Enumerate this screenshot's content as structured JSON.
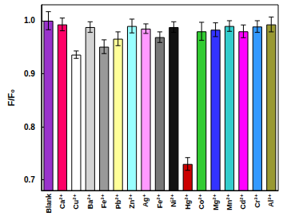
{
  "chart_data": {
    "type": "bar",
    "y_label": "F/F₀",
    "categories": [
      "Blank",
      "Ca²⁺",
      "Cu²⁺",
      "Ba²⁺",
      "Fe³⁺",
      "Pb²⁺",
      "Zn²⁺",
      "Ag⁺",
      "Fe²⁺",
      "Ni²⁺",
      "Hg²⁺",
      "Co²⁺",
      "Mg²⁺",
      "Mn²⁺",
      "Cd²⁺",
      "Cr³⁺",
      "Al³⁺"
    ],
    "values": [
      1.0,
      0.993,
      0.936,
      0.988,
      0.951,
      0.966,
      0.99,
      0.985,
      0.969,
      0.988,
      0.73,
      0.98,
      0.983,
      0.99,
      0.98,
      0.989,
      0.993
    ],
    "errors": [
      0.017,
      0.012,
      0.007,
      0.01,
      0.013,
      0.013,
      0.013,
      0.009,
      0.01,
      0.01,
      0.012,
      0.017,
      0.013,
      0.01,
      0.012,
      0.011,
      0.014
    ],
    "colors": [
      "#9933cc",
      "#ff0066",
      "#ffffff",
      "#d3d3d3",
      "#999999",
      "#ffff99",
      "#99ffff",
      "#ff99ff",
      "#777777",
      "#111111",
      "#cc0000",
      "#33cc33",
      "#3333ff",
      "#33cccc",
      "#ff00ff",
      "#3399ff",
      "#999933"
    ],
    "ylim": [
      0.68,
      1.03
    ],
    "yticks": [
      0.7,
      0.8,
      0.9,
      {
        "value": 1,
        "label": "1.0"
      }
    ],
    "grid": false
  }
}
